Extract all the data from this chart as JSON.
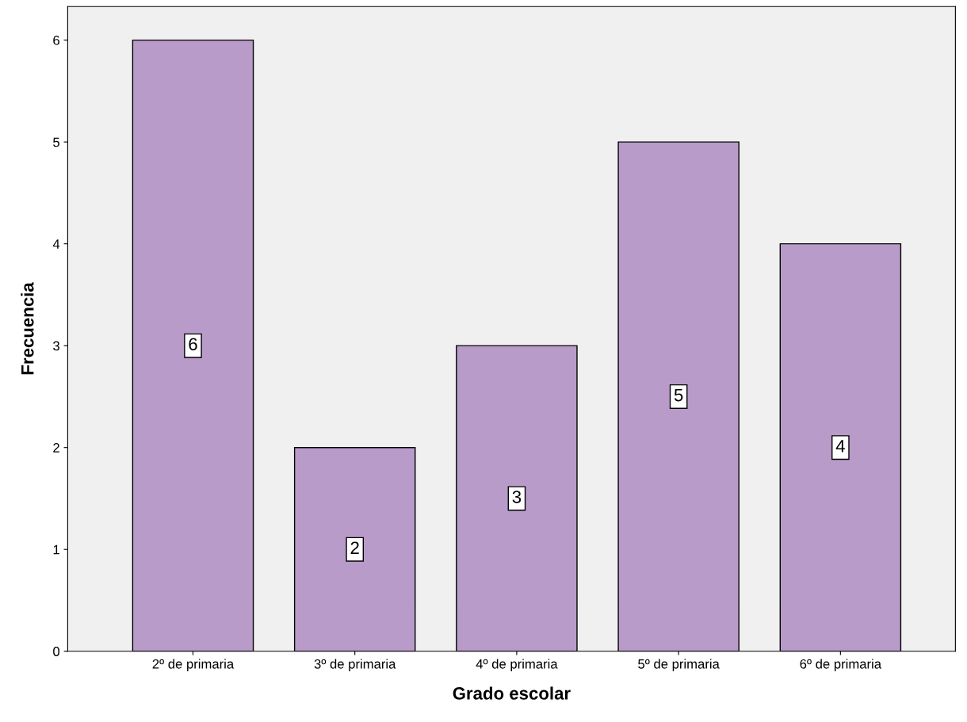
{
  "chart_data": {
    "type": "bar",
    "xlabel": "Grado escolar",
    "ylabel": "Frecuencia",
    "categories": [
      "2º de primaria",
      "3º de primaria",
      "4º de primaria",
      "5º de primaria",
      "6º de primaria"
    ],
    "values": [
      6,
      2,
      3,
      5,
      4
    ],
    "color": "#b89bc9",
    "ylim": [
      0,
      6.33
    ],
    "yticks": [
      0,
      1,
      2,
      3,
      4,
      5,
      6
    ],
    "grid": false,
    "data_labels": true
  }
}
